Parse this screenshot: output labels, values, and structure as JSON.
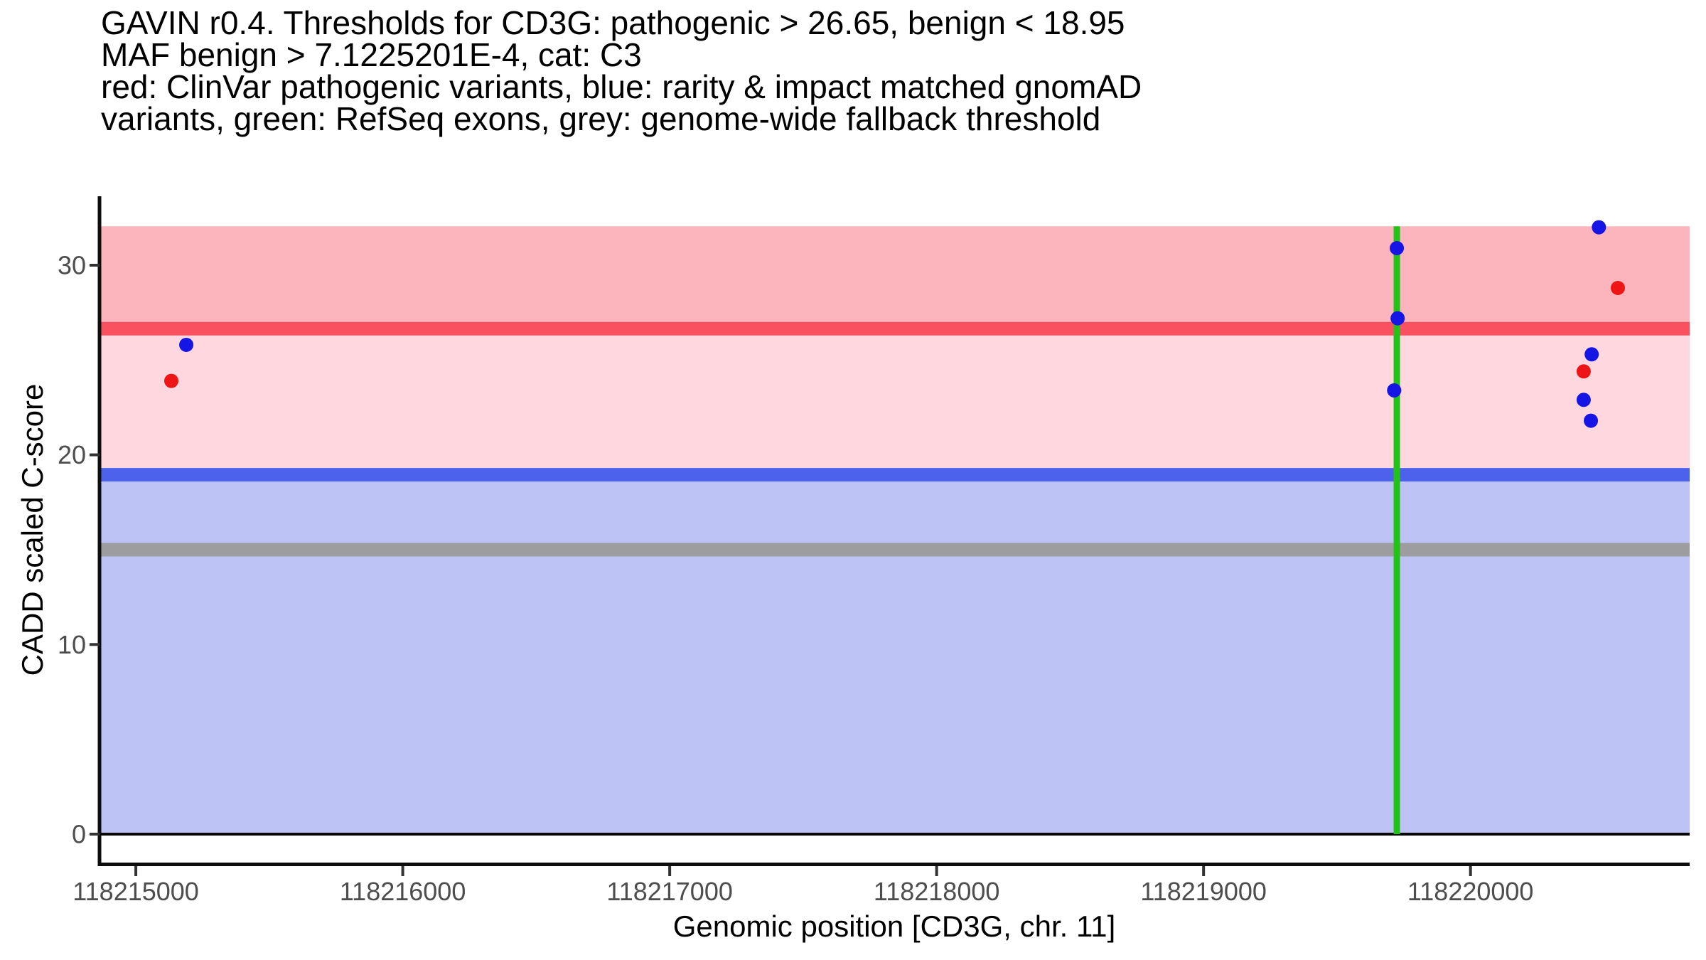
{
  "title": {
    "lines": [
      "GAVIN r0.4. Thresholds for CD3G: pathogenic > 26.65, benign < 18.95",
      "MAF benign > 7.1225201E-4, cat: C3",
      "red: ClinVar pathogenic variants, blue: rarity & impact matched gnomAD",
      "variants, green: RefSeq exons, grey: genome-wide fallback threshold"
    ]
  },
  "chart_data": {
    "type": "scatter",
    "title": "GAVIN r0.4. Thresholds for CD3G: pathogenic > 26.65, benign < 18.95 | MAF benign > 7.1225201E-4, cat: C3",
    "xlabel": "Genomic position [CD3G, chr. 11]",
    "ylabel": "CADD scaled C-score",
    "x_domain": [
      118214864,
      118220821
    ],
    "y_domain": [
      -1.5,
      33.56
    ],
    "x_ticks": [
      118215000,
      118216000,
      118217000,
      118218000,
      118219000,
      118220000
    ],
    "y_ticks": [
      0,
      10,
      20,
      30
    ],
    "grid": false,
    "legend": "described in title text",
    "thresholds": {
      "pathogenic_gt": 26.65,
      "benign_lt": 18.95,
      "genome_wide_fallback": 15,
      "maf_benign_gt": "7.1225201E-4",
      "category": "C3"
    },
    "bands": [
      {
        "name": "pathogenic-region",
        "from": 26.65,
        "to": 32.05,
        "color": "#FCB5BC"
      },
      {
        "name": "vus-region",
        "from": 18.95,
        "to": 26.65,
        "color": "#FED8DE"
      },
      {
        "name": "benign-region",
        "from": 0,
        "to": 18.95,
        "color": "#BDC3F5"
      }
    ],
    "threshold_lines": [
      {
        "name": "pathogenic-threshold",
        "y": 26.65,
        "color": "#FA5160",
        "width": 19
      },
      {
        "name": "benign-threshold",
        "y": 18.95,
        "color": "#4D62EC",
        "width": 19
      },
      {
        "name": "genome-wide-fallback-threshold",
        "y": 15,
        "color": "#9D9D9F",
        "width": 19
      }
    ],
    "baseline": {
      "y": 0,
      "color": "#0A0A0A",
      "width": 4
    },
    "exon_lines": [
      {
        "name": "refseq-exon",
        "x": 118219724,
        "from": 0,
        "to": 32.05,
        "color": "#22C316",
        "width": 9
      }
    ],
    "point_radius": 10,
    "series": [
      {
        "name": "ClinVar pathogenic variants",
        "slug": "clinvar-pathogenic",
        "color": "#ED1515",
        "points": [
          {
            "x": 118215133,
            "y": 23.9
          },
          {
            "x": 118220424,
            "y": 24.4
          },
          {
            "x": 118220552,
            "y": 28.8
          }
        ]
      },
      {
        "name": "rarity & impact matched gnomAD variants",
        "slug": "gnomad-matched",
        "color": "#1515E6",
        "points": [
          {
            "x": 118215189,
            "y": 25.8
          },
          {
            "x": 118219724,
            "y": 30.9
          },
          {
            "x": 118219727,
            "y": 27.2
          },
          {
            "x": 118219714,
            "y": 23.4
          },
          {
            "x": 118220481,
            "y": 32.0
          },
          {
            "x": 118220454,
            "y": 25.3
          },
          {
            "x": 118220424,
            "y": 22.9
          },
          {
            "x": 118220451,
            "y": 21.8
          }
        ]
      }
    ],
    "axis_style": {
      "axis_color": "#0D0D0D",
      "tick_color": "#333333",
      "tick_label_color": "#4D4D4D"
    }
  }
}
